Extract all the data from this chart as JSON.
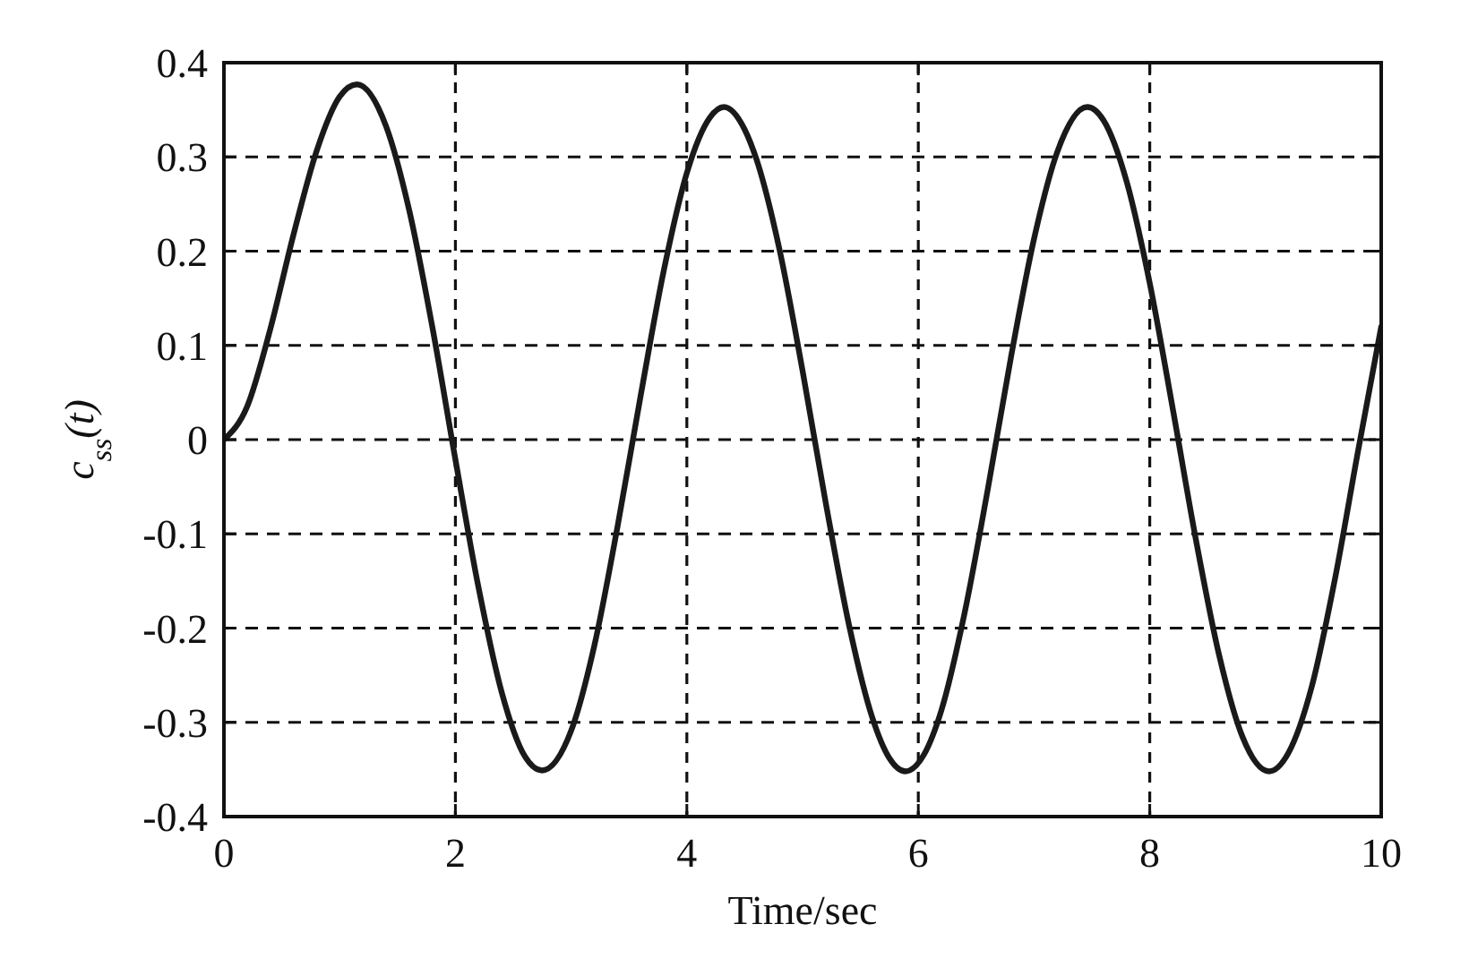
{
  "chart_data": {
    "type": "line",
    "xlabel": "Time/sec",
    "ylabel": "c$_{ss}$(t)",
    "xlim": [
      0,
      10
    ],
    "ylim": [
      -0.4,
      0.4
    ],
    "xticks": [
      0,
      2,
      4,
      6,
      8,
      10
    ],
    "yticks": [
      -0.4,
      -0.3,
      -0.2,
      -0.1,
      0,
      0.1,
      0.2,
      0.3,
      0.4
    ],
    "grid": true,
    "x": [
      0,
      0.2,
      0.4,
      0.6,
      0.8,
      1,
      1.15,
      1.4,
      1.6,
      1.8,
      2,
      2.2,
      2.4,
      2.6,
      2.75,
      3,
      3.2,
      3.4,
      3.6,
      3.8,
      4,
      4.2,
      4.32,
      4.5,
      4.6,
      4.8,
      5,
      5.2,
      5.4,
      5.6,
      5.75,
      5.89,
      6.05,
      6.2,
      6.4,
      6.6,
      6.8,
      7,
      7.2,
      7.46,
      7.6,
      7.8,
      8,
      8.2,
      8.4,
      8.6,
      8.8,
      9.03,
      9.2,
      9.4,
      9.6,
      9.8,
      10
    ],
    "series": [
      {
        "color": "#1a1a1a",
        "values": [
          0,
          0.035,
          0.117,
          0.217,
          0.306,
          0.364,
          0.377,
          0.333,
          0.244,
          0.12,
          -0.021,
          -0.157,
          -0.268,
          -0.336,
          -0.351,
          -0.309,
          -0.219,
          -0.093,
          0.046,
          0.179,
          0.283,
          0.342,
          0.353,
          0.329,
          0.298,
          0.202,
          0.073,
          -0.067,
          -0.196,
          -0.294,
          -0.338,
          -0.352,
          -0.334,
          -0.287,
          -0.184,
          -0.053,
          0.087,
          0.213,
          0.305,
          0.353,
          0.339,
          0.274,
          0.166,
          0.032,
          -0.107,
          -0.229,
          -0.315,
          -0.352,
          -0.332,
          -0.262,
          -0.148,
          -0.012,
          0.12
        ]
      }
    ]
  }
}
